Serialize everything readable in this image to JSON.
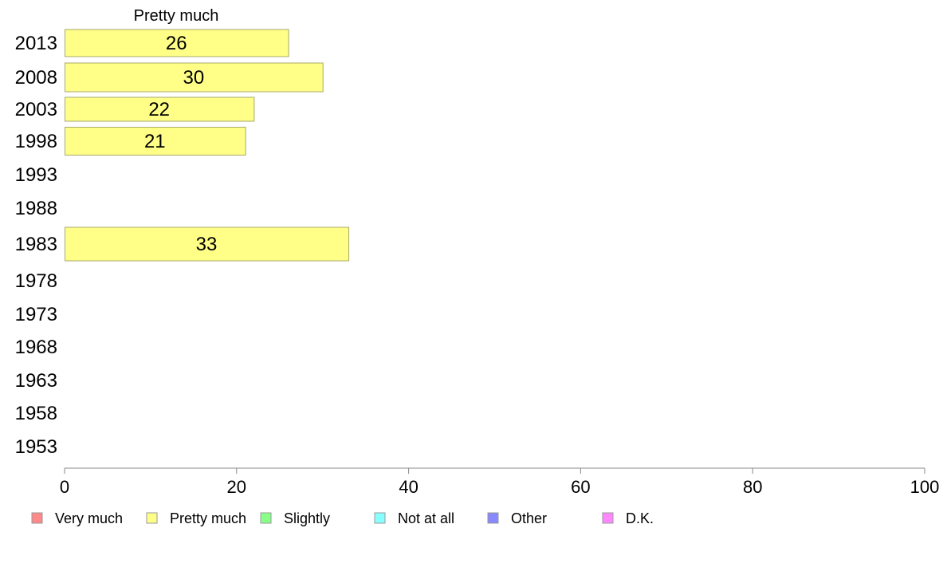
{
  "chart_data": {
    "type": "bar",
    "orientation": "horizontal",
    "title": "Pretty much",
    "categories": [
      "2013",
      "2008",
      "2003",
      "1998",
      "1993",
      "1988",
      "1983",
      "1978",
      "1973",
      "1968",
      "1963",
      "1958",
      "1953"
    ],
    "series": [
      {
        "name": "Pretty much",
        "color": "#ffff88",
        "values": [
          26,
          30,
          22,
          21,
          null,
          null,
          33,
          null,
          null,
          null,
          null,
          null,
          null
        ],
        "labels": [
          "26",
          "30",
          "22",
          "21",
          "",
          "",
          "33",
          "",
          "",
          "",
          "",
          "",
          ""
        ]
      }
    ],
    "xlim": [
      0,
      100
    ],
    "xticks": [
      0,
      20,
      40,
      60,
      80,
      100
    ],
    "xlabel": "",
    "ylabel": "",
    "grid": false,
    "legend": {
      "placement": "bottom",
      "items": [
        {
          "label": "Very much",
          "color": "#ff8888"
        },
        {
          "label": "Pretty much",
          "color": "#ffff88"
        },
        {
          "label": "Slightly",
          "color": "#88ff88"
        },
        {
          "label": "Not at all",
          "color": "#88ffff"
        },
        {
          "label": "Other",
          "color": "#8888ff"
        },
        {
          "label": "D.K.",
          "color": "#ff88ff"
        }
      ]
    }
  }
}
